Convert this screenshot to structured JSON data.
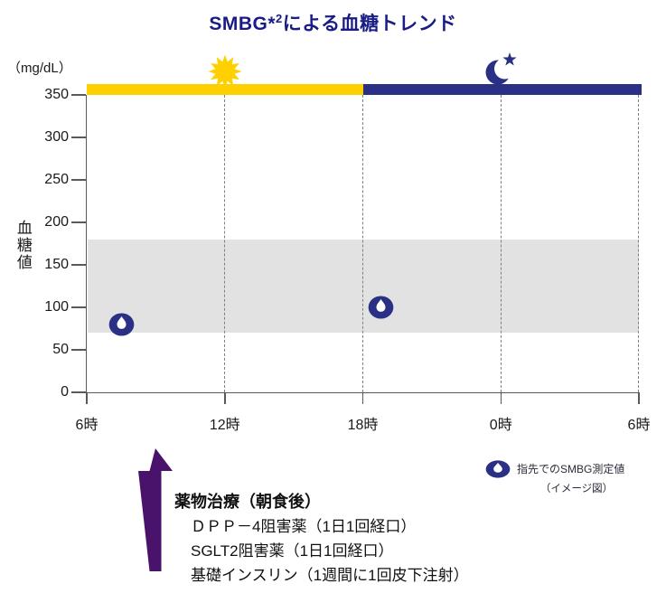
{
  "title": {
    "prefix": "SMBG*",
    "superscript": "2",
    "suffix": "による血糖トレンド",
    "full": "SMBG*2による血糖トレンド"
  },
  "colors": {
    "navy": "#2a3084",
    "title_navy": "#1a1c86",
    "day_yellow": "#ffd000",
    "arrow_purple": "#4a136b",
    "band_gray": "#e2e2e2",
    "axis_gray": "#595959"
  },
  "chart_data": {
    "type": "scatter",
    "title": "SMBG*2による血糖トレンド",
    "y_unit_label": "（mg/dL）",
    "ylabel": "血糖値",
    "ylim": [
      0,
      350
    ],
    "y_ticks": [
      0,
      50,
      100,
      150,
      200,
      250,
      300,
      350
    ],
    "xlim_hours": [
      6,
      30
    ],
    "x_ticks": [
      {
        "hour": 6,
        "label": "6時"
      },
      {
        "hour": 12,
        "label": "12時"
      },
      {
        "hour": 18,
        "label": "18時"
      },
      {
        "hour": 24,
        "label": "0時"
      },
      {
        "hour": 30,
        "label": "6時"
      }
    ],
    "grid_hours": [
      12,
      18,
      24,
      30
    ],
    "target_band": {
      "low": 70,
      "high": 180
    },
    "day_periods": [
      {
        "name": "daytime",
        "start_hour": 6,
        "end_hour": 18,
        "color": "#ffd000",
        "icon": "sun-icon",
        "icon_hour": 12
      },
      {
        "name": "night",
        "start_hour": 18,
        "end_hour": 30,
        "color": "#2a3084",
        "icon": "moon-icon",
        "icon_hour": 24
      }
    ],
    "points": [
      {
        "hour": 7.5,
        "value": 80
      },
      {
        "hour": 18.8,
        "value": 100
      }
    ],
    "grid": "vertical-dashed",
    "legend_position": "bottom-right"
  },
  "legend": {
    "marker": "blood-drop-icon",
    "label": "指先でのSMBG測定値",
    "sublabel": "（イメージ図）"
  },
  "annotation": {
    "arrow": "up-arrow",
    "arrow_hour": 9,
    "heading": "薬物治療（朝食後）",
    "lines": [
      "ＤＰＰ－4阻害薬（1日1回経口）",
      "SGLT2阻害薬（1日1回経口）",
      "基礎インスリン（1週間に1回皮下注射）"
    ]
  }
}
